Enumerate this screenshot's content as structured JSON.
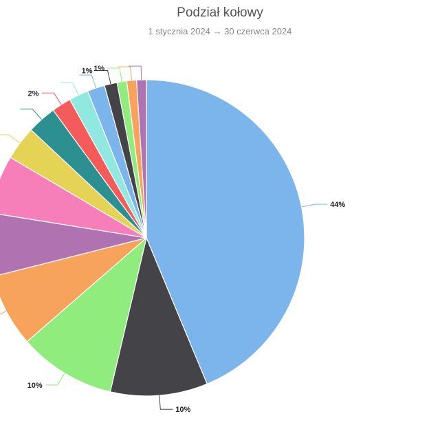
{
  "header": {
    "title": "Podział kołowy",
    "subtitle": "1 stycznia 2024 → 30 czerwca 2024"
  },
  "chart_data": {
    "type": "pie",
    "title": "Podział kołowy",
    "subtitle": "1 stycznia 2024 → 30 czerwca 2024",
    "values": [
      44,
      10,
      10,
      7.5,
      6.5,
      6,
      3.5,
      3,
      2,
      2,
      1.8,
      1.3,
      1,
      1,
      1
    ],
    "colors": [
      "#7cb5ec",
      "#434348",
      "#90ed7d",
      "#f7a35c",
      "#b072b0",
      "#f77fb9",
      "#e4d354",
      "#2b908f",
      "#f45b5b",
      "#91e8e1",
      "#7cb5ec",
      "#434348",
      "#90ed7d",
      "#f7a35c",
      "#b072b0"
    ],
    "data_labels": [
      "44%",
      "10%",
      "10%",
      "",
      "",
      "",
      "",
      "",
      "2%",
      "",
      "",
      "1%",
      "1%",
      "",
      ""
    ],
    "start_angle_deg": 0,
    "direction": "clockwise"
  }
}
